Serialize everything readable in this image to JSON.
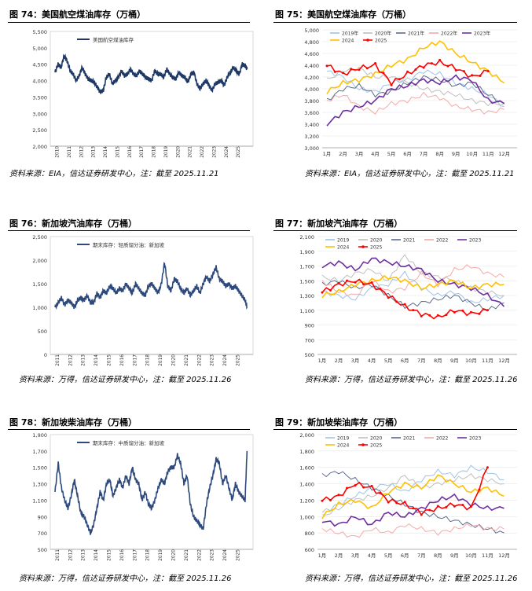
{
  "figures": [
    {
      "title": "图 74：美国航空煤油库存（万桶）",
      "source": "资料来源：EIA，信达证券研发中心，注：截至 2025.11.21"
    },
    {
      "title": "图 75：美国航空煤油库存（万桶）",
      "source": "资料来源：EIA，信达证券研发中心，注：截至 2025.11.21"
    },
    {
      "title": "图 76：新加坡汽油库存（万桶）",
      "source": "资料来源：万得，信达证券研发中心，注：截至 2025.11.26"
    },
    {
      "title": "图 77：新加坡汽油库存（万桶）",
      "source": "资料来源：万得，信达证券研发中心，注：截至 2025.11.26"
    },
    {
      "title": "图 78：新加坡柴油库存（万桶）",
      "source": "资料来源：万得，信达证券研发中心，注：截至 2025.11.26"
    },
    {
      "title": "图 79：新加坡柴油库存（万桶）",
      "source": "资料来源：万得，信达证券研发中心，注：截至 2025.11.26"
    }
  ],
  "chart_data": [
    {
      "type": "line",
      "ylim": [
        2000,
        5500
      ],
      "yticks": [
        2000,
        2500,
        3000,
        3500,
        4000,
        4500,
        5000,
        5500
      ],
      "xticks": [
        "2010",
        "2011",
        "2012",
        "2013",
        "2014",
        "2015",
        "2016",
        "2017",
        "2018",
        "2019",
        "2020",
        "2021",
        "2022",
        "2023",
        "2024",
        "2025"
      ],
      "series": [
        {
          "name": "美国航空煤油库存",
          "color": "#1f3864",
          "years": [
            2010.0,
            2010.25,
            2010.5,
            2010.75,
            2011.0,
            2011.25,
            2011.5,
            2011.75,
            2012.0,
            2012.25,
            2012.5,
            2012.75,
            2013.0,
            2013.25,
            2013.5,
            2013.75,
            2014.0,
            2014.25,
            2014.5,
            2014.75,
            2015.0,
            2015.25,
            2015.5,
            2015.75,
            2016.0,
            2016.25,
            2016.5,
            2016.75,
            2017.0,
            2017.25,
            2017.5,
            2017.75,
            2018.0,
            2018.25,
            2018.5,
            2018.75,
            2019.0,
            2019.25,
            2019.5,
            2019.75,
            2020.0,
            2020.25,
            2020.5,
            2020.75,
            2021.0,
            2021.25,
            2021.5,
            2021.75,
            2022.0,
            2022.25,
            2022.5,
            2022.75,
            2023.0,
            2023.25,
            2023.5,
            2023.75,
            2024.0,
            2024.25,
            2024.5,
            2024.75,
            2025.0,
            2025.25,
            2025.5,
            2025.75,
            2025.9
          ],
          "values": [
            4250,
            4500,
            4400,
            4750,
            4600,
            4300,
            4200,
            4000,
            4150,
            4400,
            4200,
            4050,
            4000,
            3950,
            3800,
            3650,
            3700,
            4100,
            4200,
            3900,
            4000,
            4100,
            4300,
            4150,
            4200,
            4350,
            4200,
            4150,
            4300,
            4200,
            4100,
            4050,
            4000,
            4300,
            4200,
            4200,
            4100,
            4350,
            4200,
            4100,
            4050,
            4250,
            4150,
            4100,
            3950,
            4200,
            4250,
            3900,
            3750,
            3900,
            4000,
            3850,
            3700,
            3900,
            3950,
            4000,
            3850,
            4100,
            4250,
            4400,
            4300,
            4200,
            4500,
            4450,
            4350
          ]
        }
      ]
    },
    {
      "type": "line",
      "ylim": [
        3000,
        5000
      ],
      "yticks": [
        3000,
        3200,
        3400,
        3600,
        3800,
        4000,
        4200,
        4400,
        4600,
        4800,
        5000
      ],
      "xticks": [
        "1月",
        "2月",
        "3月",
        "4月",
        "5月",
        "6月",
        "7月",
        "8月",
        "9月",
        "10月",
        "11月",
        "12月"
      ],
      "series": [
        {
          "name": "2019年",
          "color": "#9dc3e6",
          "values": [
            4300,
            4200,
            4000,
            3950,
            4100,
            4150,
            4300,
            4250,
            4100,
            4000,
            3900,
            3700
          ]
        },
        {
          "name": "2020年",
          "color": "#bfbfbf",
          "values": [
            4150,
            4300,
            4350,
            4200,
            4200,
            4100,
            4000,
            3950,
            3900,
            3800,
            3750,
            3750
          ]
        },
        {
          "name": "2021年",
          "color": "#5b6b8c",
          "values": [
            3800,
            4000,
            4050,
            3900,
            3950,
            4100,
            4200,
            4150,
            4050,
            4100,
            3900,
            3750
          ]
        },
        {
          "name": "2022年",
          "color": "#f4a9a8",
          "values": [
            3800,
            3900,
            3700,
            3600,
            3750,
            3800,
            3900,
            3850,
            3700,
            3650,
            3600,
            3650
          ]
        },
        {
          "name": "2023年",
          "color": "#7030a0",
          "values": [
            3400,
            3600,
            3700,
            3800,
            4000,
            4050,
            4150,
            4100,
            4200,
            4150,
            3800,
            3750
          ]
        },
        {
          "name": "2024",
          "color": "#ffc000",
          "values": [
            3950,
            4100,
            4150,
            4250,
            4400,
            4500,
            4700,
            4800,
            4600,
            4450,
            4300,
            4100
          ]
        },
        {
          "name": "2025",
          "color": "#ff0000",
          "values": [
            4400,
            4250,
            4350,
            4400,
            4100,
            4250,
            4400,
            4450,
            4350,
            4200,
            4300,
            null
          ]
        }
      ]
    },
    {
      "type": "line",
      "ylim": [
        0,
        2500
      ],
      "yticks": [
        0,
        500,
        1000,
        1500,
        2000,
        2500
      ],
      "xticks": [
        "2011",
        "2012",
        "2013",
        "2014",
        "2015",
        "2016",
        "2017",
        "2018",
        "2019",
        "2020",
        "2021",
        "2022",
        "2023",
        "2024",
        "2025"
      ],
      "series": [
        {
          "name": "期末库存：轻质馏分油：新加坡",
          "color": "#2e4a7d",
          "years": [
            2011.0,
            2011.25,
            2011.5,
            2011.75,
            2012.0,
            2012.25,
            2012.5,
            2012.75,
            2013.0,
            2013.25,
            2013.5,
            2013.75,
            2014.0,
            2014.25,
            2014.5,
            2014.75,
            2015.0,
            2015.25,
            2015.5,
            2015.75,
            2016.0,
            2016.25,
            2016.5,
            2016.75,
            2017.0,
            2017.25,
            2017.5,
            2017.75,
            2018.0,
            2018.25,
            2018.5,
            2018.75,
            2019.0,
            2019.25,
            2019.5,
            2019.75,
            2020.0,
            2020.25,
            2020.5,
            2020.75,
            2021.0,
            2021.25,
            2021.5,
            2021.75,
            2022.0,
            2022.25,
            2022.5,
            2022.75,
            2023.0,
            2023.25,
            2023.5,
            2023.75,
            2024.0,
            2024.25,
            2024.5,
            2024.75,
            2025.0,
            2025.25,
            2025.5,
            2025.75,
            2025.9
          ],
          "values": [
            1000,
            1100,
            1200,
            1050,
            1150,
            1100,
            1000,
            1150,
            1200,
            1150,
            1250,
            1100,
            1100,
            1300,
            1200,
            1350,
            1300,
            1450,
            1400,
            1300,
            1400,
            1350,
            1500,
            1400,
            1300,
            1500,
            1400,
            1300,
            1250,
            1450,
            1500,
            1400,
            1300,
            1500,
            1950,
            1450,
            1350,
            1600,
            1550,
            1400,
            1300,
            1400,
            1250,
            1350,
            1450,
            1300,
            1500,
            1650,
            1550,
            1700,
            1850,
            1600,
            1550,
            1450,
            1500,
            1400,
            1450,
            1350,
            1250,
            1150,
            1000
          ]
        }
      ]
    },
    {
      "type": "line",
      "ylim": [
        500,
        2100
      ],
      "yticks": [
        500,
        700,
        900,
        1100,
        1300,
        1500,
        1700,
        1900,
        2100
      ],
      "xticks": [
        "1月",
        "2月",
        "3月",
        "4月",
        "5月",
        "6月",
        "7月",
        "8月",
        "9月",
        "10月",
        "11月",
        "12月"
      ],
      "series": [
        {
          "name": "2019",
          "color": "#9dc3e6",
          "values": [
            1350,
            1300,
            1250,
            1400,
            1450,
            1600,
            1400,
            1300,
            1350,
            1200,
            1250,
            1300
          ]
        },
        {
          "name": "2020",
          "color": "#bfbfbf",
          "values": [
            1550,
            1500,
            1600,
            1650,
            1500,
            1850,
            1600,
            1550,
            1500,
            1400,
            1350,
            1300
          ]
        },
        {
          "name": "2021",
          "color": "#5b6b8c",
          "values": [
            1450,
            1500,
            1400,
            1450,
            1300,
            1150,
            1200,
            1250,
            1300,
            1200,
            1100,
            1200
          ]
        },
        {
          "name": "2022",
          "color": "#f4a9a8",
          "values": [
            1500,
            1350,
            1300,
            1500,
            1350,
            1400,
            1600,
            1450,
            1650,
            1700,
            1600,
            1550
          ]
        },
        {
          "name": "2023",
          "color": "#7030a0",
          "values": [
            1700,
            1750,
            1650,
            1800,
            1750,
            1700,
            1650,
            1500,
            1450,
            1400,
            1300,
            1150
          ]
        },
        {
          "name": "2024",
          "color": "#ffc000",
          "values": [
            1300,
            1350,
            1450,
            1500,
            1550,
            1500,
            1400,
            1450,
            1500,
            1400,
            1450,
            1450
          ]
        },
        {
          "name": "2025",
          "color": "#ff0000",
          "values": [
            1350,
            1450,
            1500,
            1450,
            1300,
            1150,
            1050,
            1000,
            1100,
            1050,
            1100,
            null
          ]
        }
      ]
    },
    {
      "type": "line",
      "ylim": [
        500,
        1900
      ],
      "yticks": [
        500,
        700,
        900,
        1100,
        1300,
        1500,
        1700,
        1900
      ],
      "xticks": [
        "2011",
        "2012",
        "2013",
        "2014",
        "2015",
        "2016",
        "2017",
        "2018",
        "2019",
        "2020",
        "2021",
        "2022",
        "2023",
        "2024",
        "2025"
      ],
      "series": [
        {
          "name": "期末库存：中质馏分油：新加坡",
          "color": "#2e4a7d",
          "years": [
            2011.0,
            2011.25,
            2011.5,
            2011.75,
            2012.0,
            2012.25,
            2012.5,
            2012.75,
            2013.0,
            2013.25,
            2013.5,
            2013.75,
            2014.0,
            2014.25,
            2014.5,
            2014.75,
            2015.0,
            2015.25,
            2015.5,
            2015.75,
            2016.0,
            2016.25,
            2016.5,
            2016.75,
            2017.0,
            2017.25,
            2017.5,
            2017.75,
            2018.0,
            2018.25,
            2018.5,
            2018.75,
            2019.0,
            2019.25,
            2019.5,
            2019.75,
            2020.0,
            2020.25,
            2020.5,
            2020.75,
            2021.0,
            2021.25,
            2021.5,
            2021.75,
            2022.0,
            2022.25,
            2022.5,
            2022.75,
            2023.0,
            2023.25,
            2023.5,
            2023.75,
            2024.0,
            2024.25,
            2024.5,
            2024.75,
            2025.0,
            2025.25,
            2025.5,
            2025.75,
            2025.9
          ],
          "values": [
            1200,
            1550,
            1250,
            1100,
            1000,
            1150,
            1350,
            1150,
            950,
            900,
            800,
            700,
            800,
            1000,
            1200,
            1100,
            1300,
            1350,
            1150,
            1250,
            1350,
            1250,
            1400,
            1300,
            1500,
            1350,
            1300,
            1100,
            1200,
            1050,
            1000,
            1100,
            1250,
            1350,
            1300,
            1450,
            1500,
            1500,
            1650,
            1550,
            1300,
            1400,
            1050,
            900,
            850,
            800,
            750,
            1050,
            1250,
            1400,
            1600,
            1550,
            1300,
            1400,
            1250,
            1100,
            1300,
            1200,
            1150,
            1100,
            1700
          ]
        }
      ]
    },
    {
      "type": "line",
      "ylim": [
        600,
        2000
      ],
      "yticks": [
        600,
        800,
        1000,
        1200,
        1400,
        1600,
        1800,
        2000
      ],
      "xticks": [
        "1月",
        "2月",
        "3月",
        "4月",
        "5月",
        "6月",
        "7月",
        "8月",
        "9月",
        "10月",
        "11月",
        "12月"
      ],
      "series": [
        {
          "name": "2019",
          "color": "#9dc3e6",
          "values": [
            1050,
            1150,
            1250,
            1350,
            1400,
            1300,
            1450,
            1550,
            1500,
            1600,
            1550,
            1450
          ]
        },
        {
          "name": "2020",
          "color": "#bfbfbf",
          "values": [
            1000,
            1100,
            1200,
            1250,
            1350,
            1500,
            1350,
            1400,
            1450,
            1500,
            1450,
            1400
          ]
        },
        {
          "name": "2021",
          "color": "#5b6b8c",
          "values": [
            1500,
            1550,
            1450,
            1350,
            1250,
            1150,
            1050,
            1000,
            950,
            900,
            850,
            800
          ]
        },
        {
          "name": "2022",
          "color": "#f4a9a8",
          "values": [
            850,
            800,
            750,
            850,
            800,
            900,
            850,
            800,
            850,
            900,
            850,
            850
          ]
        },
        {
          "name": "2023",
          "color": "#7030a0",
          "values": [
            950,
            900,
            1000,
            900,
            1050,
            1000,
            1100,
            1200,
            1250,
            1150,
            1100,
            1100
          ]
        },
        {
          "name": "2024",
          "color": "#ffc000",
          "values": [
            1000,
            1150,
            1200,
            1100,
            1300,
            1400,
            1350,
            1500,
            1400,
            1300,
            1350,
            1250
          ]
        },
        {
          "name": "2025",
          "color": "#ff0000",
          "values": [
            1200,
            1250,
            1400,
            1350,
            1200,
            1150,
            1050,
            1100,
            1150,
            1100,
            1600,
            null
          ]
        }
      ]
    }
  ]
}
